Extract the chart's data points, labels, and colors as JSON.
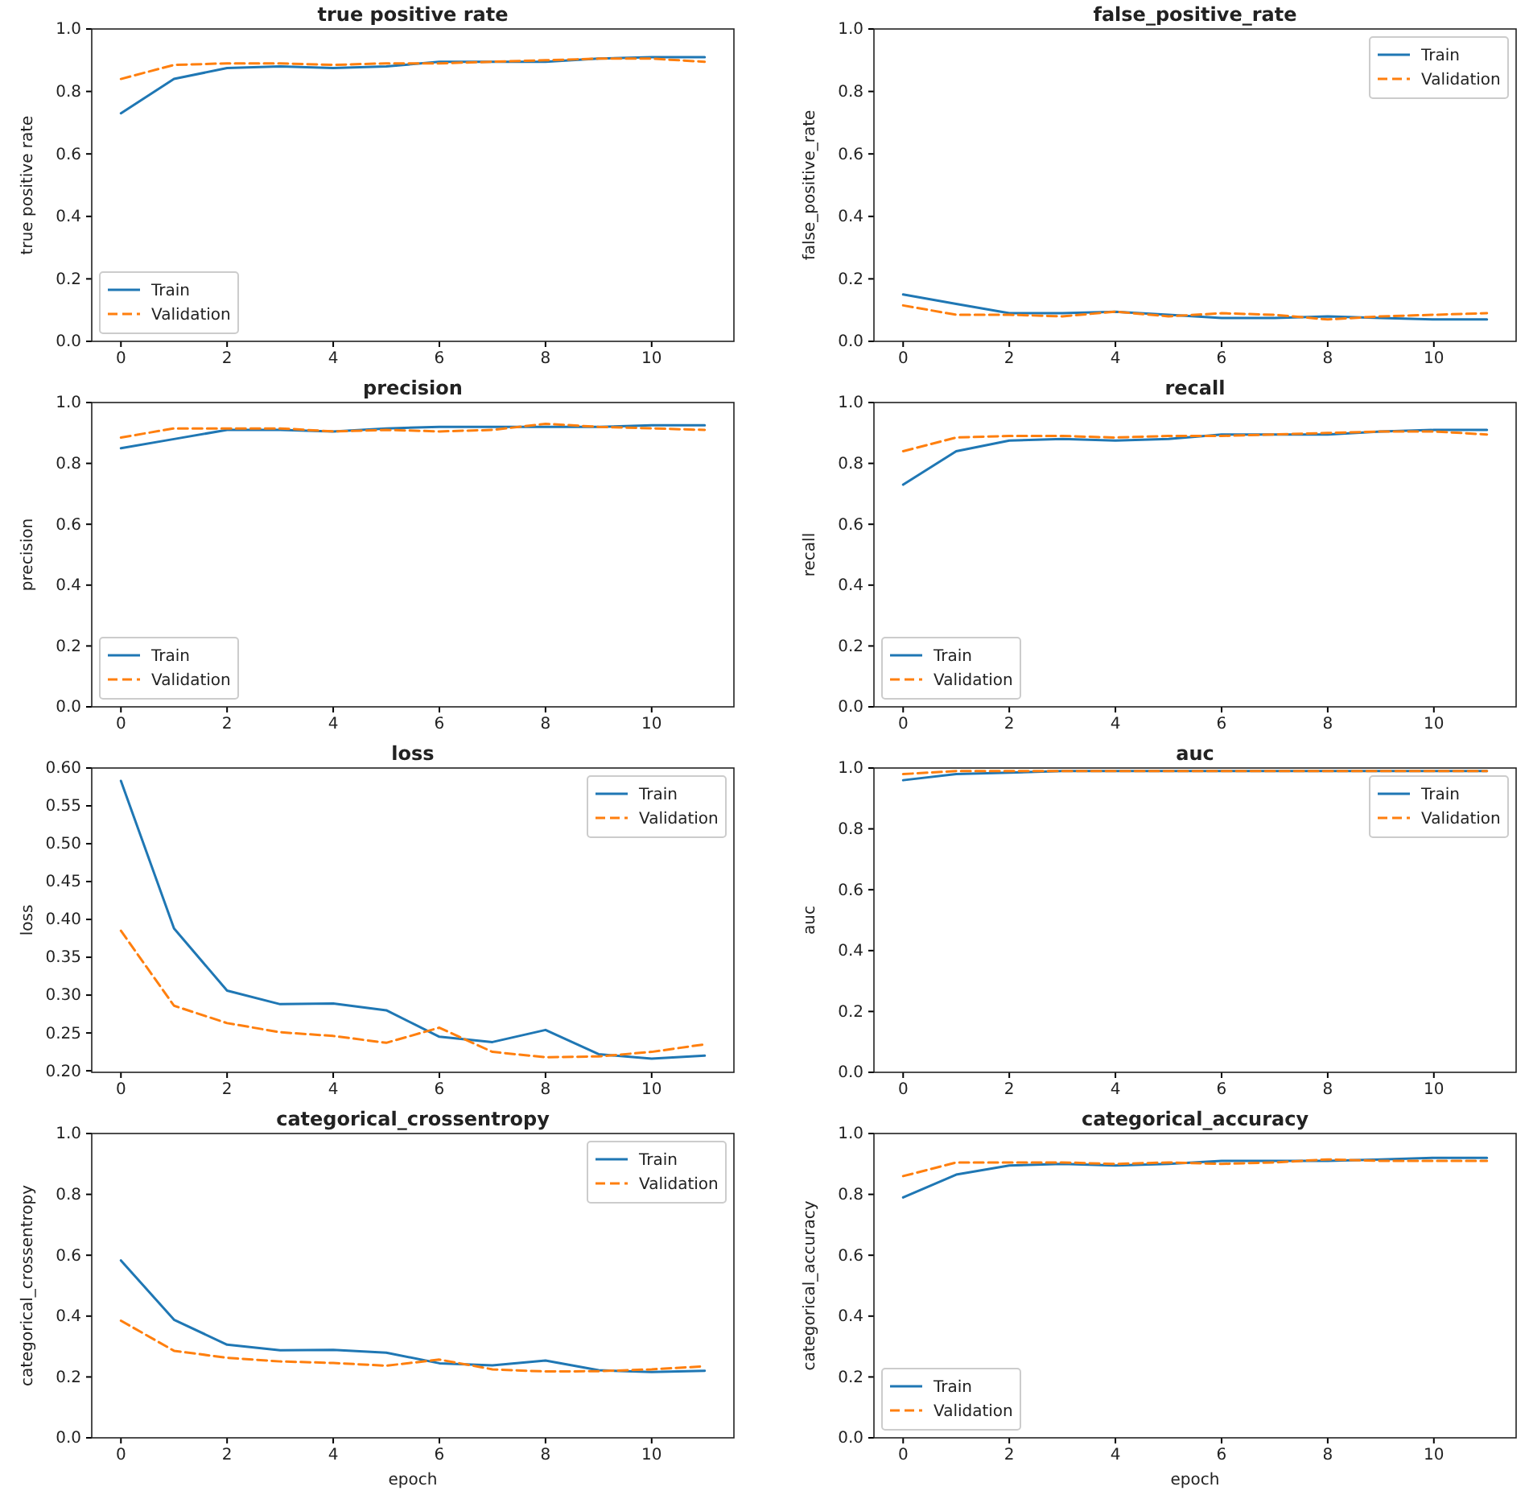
{
  "chart_data": [
    {
      "type": "line",
      "title": "true positive rate",
      "ylabel": "true positive rate",
      "x": [
        0,
        1,
        2,
        3,
        4,
        5,
        6,
        7,
        8,
        9,
        10,
        11
      ],
      "xlim": [
        -0.55,
        11.55
      ],
      "xticks": [
        0,
        2,
        4,
        6,
        8,
        10
      ],
      "ylim": [
        0,
        1
      ],
      "yticks": [
        {
          "value": 0,
          "label": "0.0"
        },
        {
          "value": 0.2,
          "label": "0.2"
        },
        {
          "value": 0.4,
          "label": "0.4"
        },
        {
          "value": 0.6,
          "label": "0.6"
        },
        {
          "value": 0.8,
          "label": "0.8"
        },
        {
          "value": 1,
          "label": "1.0"
        }
      ],
      "legend": "bottom left",
      "series": [
        {
          "name": "Train",
          "color": "#1f77b4",
          "line_style": "solid",
          "values": [
            0.73,
            0.84,
            0.875,
            0.88,
            0.875,
            0.88,
            0.895,
            0.895,
            0.895,
            0.905,
            0.91,
            0.91
          ]
        },
        {
          "name": "Validation",
          "color": "#ff7f0e",
          "line_style": "dashed",
          "values": [
            0.84,
            0.885,
            0.89,
            0.89,
            0.885,
            0.89,
            0.89,
            0.895,
            0.9,
            0.905,
            0.905,
            0.895
          ]
        }
      ]
    },
    {
      "type": "line",
      "title": "false_positive_rate",
      "ylabel": "false_positive_rate",
      "x": [
        0,
        1,
        2,
        3,
        4,
        5,
        6,
        7,
        8,
        9,
        10,
        11
      ],
      "xlim": [
        -0.55,
        11.55
      ],
      "xticks": [
        0,
        2,
        4,
        6,
        8,
        10
      ],
      "ylim": [
        0,
        1
      ],
      "yticks": [
        {
          "value": 0,
          "label": "0.0"
        },
        {
          "value": 0.2,
          "label": "0.2"
        },
        {
          "value": 0.4,
          "label": "0.4"
        },
        {
          "value": 0.6,
          "label": "0.6"
        },
        {
          "value": 0.8,
          "label": "0.8"
        },
        {
          "value": 1,
          "label": "1.0"
        }
      ],
      "legend": "top right",
      "series": [
        {
          "name": "Train",
          "color": "#1f77b4",
          "line_style": "solid",
          "values": [
            0.15,
            0.12,
            0.09,
            0.09,
            0.095,
            0.085,
            0.075,
            0.075,
            0.08,
            0.075,
            0.07,
            0.07
          ]
        },
        {
          "name": "Validation",
          "color": "#ff7f0e",
          "line_style": "dashed",
          "values": [
            0.115,
            0.085,
            0.085,
            0.08,
            0.095,
            0.08,
            0.09,
            0.085,
            0.07,
            0.08,
            0.085,
            0.09
          ]
        }
      ]
    },
    {
      "type": "line",
      "title": "precision",
      "ylabel": "precision",
      "x": [
        0,
        1,
        2,
        3,
        4,
        5,
        6,
        7,
        8,
        9,
        10,
        11
      ],
      "xlim": [
        -0.55,
        11.55
      ],
      "xticks": [
        0,
        2,
        4,
        6,
        8,
        10
      ],
      "ylim": [
        0,
        1
      ],
      "yticks": [
        {
          "value": 0,
          "label": "0.0"
        },
        {
          "value": 0.2,
          "label": "0.2"
        },
        {
          "value": 0.4,
          "label": "0.4"
        },
        {
          "value": 0.6,
          "label": "0.6"
        },
        {
          "value": 0.8,
          "label": "0.8"
        },
        {
          "value": 1,
          "label": "1.0"
        }
      ],
      "legend": "bottom left",
      "series": [
        {
          "name": "Train",
          "color": "#1f77b4",
          "line_style": "solid",
          "values": [
            0.85,
            0.88,
            0.91,
            0.91,
            0.905,
            0.915,
            0.92,
            0.92,
            0.92,
            0.92,
            0.925,
            0.925
          ]
        },
        {
          "name": "Validation",
          "color": "#ff7f0e",
          "line_style": "dashed",
          "values": [
            0.885,
            0.915,
            0.915,
            0.915,
            0.905,
            0.91,
            0.905,
            0.91,
            0.93,
            0.92,
            0.915,
            0.91
          ]
        }
      ]
    },
    {
      "type": "line",
      "title": "recall",
      "ylabel": "recall",
      "x": [
        0,
        1,
        2,
        3,
        4,
        5,
        6,
        7,
        8,
        9,
        10,
        11
      ],
      "xlim": [
        -0.55,
        11.55
      ],
      "xticks": [
        0,
        2,
        4,
        6,
        8,
        10
      ],
      "ylim": [
        0,
        1
      ],
      "yticks": [
        {
          "value": 0,
          "label": "0.0"
        },
        {
          "value": 0.2,
          "label": "0.2"
        },
        {
          "value": 0.4,
          "label": "0.4"
        },
        {
          "value": 0.6,
          "label": "0.6"
        },
        {
          "value": 0.8,
          "label": "0.8"
        },
        {
          "value": 1,
          "label": "1.0"
        }
      ],
      "legend": "bottom left",
      "series": [
        {
          "name": "Train",
          "color": "#1f77b4",
          "line_style": "solid",
          "values": [
            0.73,
            0.84,
            0.875,
            0.88,
            0.875,
            0.88,
            0.895,
            0.895,
            0.895,
            0.905,
            0.91,
            0.91
          ]
        },
        {
          "name": "Validation",
          "color": "#ff7f0e",
          "line_style": "dashed",
          "values": [
            0.84,
            0.885,
            0.89,
            0.89,
            0.885,
            0.89,
            0.89,
            0.895,
            0.9,
            0.905,
            0.905,
            0.895
          ]
        }
      ]
    },
    {
      "type": "line",
      "title": "loss",
      "ylabel": "loss",
      "x": [
        0,
        1,
        2,
        3,
        4,
        5,
        6,
        7,
        8,
        9,
        10,
        11
      ],
      "xlim": [
        -0.55,
        11.55
      ],
      "xticks": [
        0,
        2,
        4,
        6,
        8,
        10
      ],
      "ylim": [
        0.198,
        0.6
      ],
      "yticks": [
        {
          "value": 0.2,
          "label": "0.20"
        },
        {
          "value": 0.25,
          "label": "0.25"
        },
        {
          "value": 0.3,
          "label": "0.30"
        },
        {
          "value": 0.35,
          "label": "0.35"
        },
        {
          "value": 0.4,
          "label": "0.40"
        },
        {
          "value": 0.45,
          "label": "0.45"
        },
        {
          "value": 0.5,
          "label": "0.50"
        },
        {
          "value": 0.55,
          "label": "0.55"
        },
        {
          "value": 0.6,
          "label": "0.60"
        }
      ],
      "legend": "top right",
      "series": [
        {
          "name": "Train",
          "color": "#1f77b4",
          "line_style": "solid",
          "values": [
            0.583,
            0.388,
            0.306,
            0.288,
            0.289,
            0.28,
            0.245,
            0.238,
            0.254,
            0.222,
            0.216,
            0.22
          ]
        },
        {
          "name": "Validation",
          "color": "#ff7f0e",
          "line_style": "dashed",
          "values": [
            0.385,
            0.286,
            0.263,
            0.251,
            0.246,
            0.237,
            0.257,
            0.225,
            0.218,
            0.219,
            0.225,
            0.235
          ]
        }
      ]
    },
    {
      "type": "line",
      "title": "auc",
      "ylabel": "auc",
      "x": [
        0,
        1,
        2,
        3,
        4,
        5,
        6,
        7,
        8,
        9,
        10,
        11
      ],
      "xlim": [
        -0.55,
        11.55
      ],
      "xticks": [
        0,
        2,
        4,
        6,
        8,
        10
      ],
      "ylim": [
        0,
        1
      ],
      "yticks": [
        {
          "value": 0,
          "label": "0.0"
        },
        {
          "value": 0.2,
          "label": "0.2"
        },
        {
          "value": 0.4,
          "label": "0.4"
        },
        {
          "value": 0.6,
          "label": "0.6"
        },
        {
          "value": 0.8,
          "label": "0.8"
        },
        {
          "value": 1,
          "label": "1.0"
        }
      ],
      "legend": "top right",
      "series": [
        {
          "name": "Train",
          "color": "#1f77b4",
          "line_style": "solid",
          "values": [
            0.96,
            0.98,
            0.985,
            0.99,
            0.99,
            0.99,
            0.99,
            0.99,
            0.99,
            0.99,
            0.99,
            0.99
          ]
        },
        {
          "name": "Validation",
          "color": "#ff7f0e",
          "line_style": "dashed",
          "values": [
            0.98,
            0.99,
            0.99,
            0.99,
            0.99,
            0.99,
            0.99,
            0.99,
            0.99,
            0.99,
            0.99,
            0.99
          ]
        }
      ]
    },
    {
      "type": "line",
      "title": "categorical_crossentropy",
      "xlabel": "epoch",
      "ylabel": "categorical_crossentropy",
      "x": [
        0,
        1,
        2,
        3,
        4,
        5,
        6,
        7,
        8,
        9,
        10,
        11
      ],
      "xlim": [
        -0.55,
        11.55
      ],
      "xticks": [
        0,
        2,
        4,
        6,
        8,
        10
      ],
      "ylim": [
        0,
        1
      ],
      "yticks": [
        {
          "value": 0,
          "label": "0.0"
        },
        {
          "value": 0.2,
          "label": "0.2"
        },
        {
          "value": 0.4,
          "label": "0.4"
        },
        {
          "value": 0.6,
          "label": "0.6"
        },
        {
          "value": 0.8,
          "label": "0.8"
        },
        {
          "value": 1,
          "label": "1.0"
        }
      ],
      "legend": "top right",
      "series": [
        {
          "name": "Train",
          "color": "#1f77b4",
          "line_style": "solid",
          "values": [
            0.583,
            0.388,
            0.306,
            0.288,
            0.289,
            0.28,
            0.245,
            0.238,
            0.254,
            0.222,
            0.216,
            0.22
          ]
        },
        {
          "name": "Validation",
          "color": "#ff7f0e",
          "line_style": "dashed",
          "values": [
            0.385,
            0.286,
            0.263,
            0.251,
            0.246,
            0.237,
            0.257,
            0.225,
            0.218,
            0.219,
            0.225,
            0.235
          ]
        }
      ]
    },
    {
      "type": "line",
      "title": "categorical_accuracy",
      "xlabel": "epoch",
      "ylabel": "categorical_accuracy",
      "x": [
        0,
        1,
        2,
        3,
        4,
        5,
        6,
        7,
        8,
        9,
        10,
        11
      ],
      "xlim": [
        -0.55,
        11.55
      ],
      "xticks": [
        0,
        2,
        4,
        6,
        8,
        10
      ],
      "ylim": [
        0,
        1
      ],
      "yticks": [
        {
          "value": 0,
          "label": "0.0"
        },
        {
          "value": 0.2,
          "label": "0.2"
        },
        {
          "value": 0.4,
          "label": "0.4"
        },
        {
          "value": 0.6,
          "label": "0.6"
        },
        {
          "value": 0.8,
          "label": "0.8"
        },
        {
          "value": 1,
          "label": "1.0"
        }
      ],
      "legend": "bottom left",
      "series": [
        {
          "name": "Train",
          "color": "#1f77b4",
          "line_style": "solid",
          "values": [
            0.79,
            0.865,
            0.895,
            0.9,
            0.895,
            0.9,
            0.91,
            0.91,
            0.91,
            0.915,
            0.92,
            0.92
          ]
        },
        {
          "name": "Validation",
          "color": "#ff7f0e",
          "line_style": "dashed",
          "values": [
            0.86,
            0.905,
            0.905,
            0.905,
            0.9,
            0.905,
            0.9,
            0.905,
            0.915,
            0.91,
            0.91,
            0.91
          ]
        }
      ]
    }
  ]
}
